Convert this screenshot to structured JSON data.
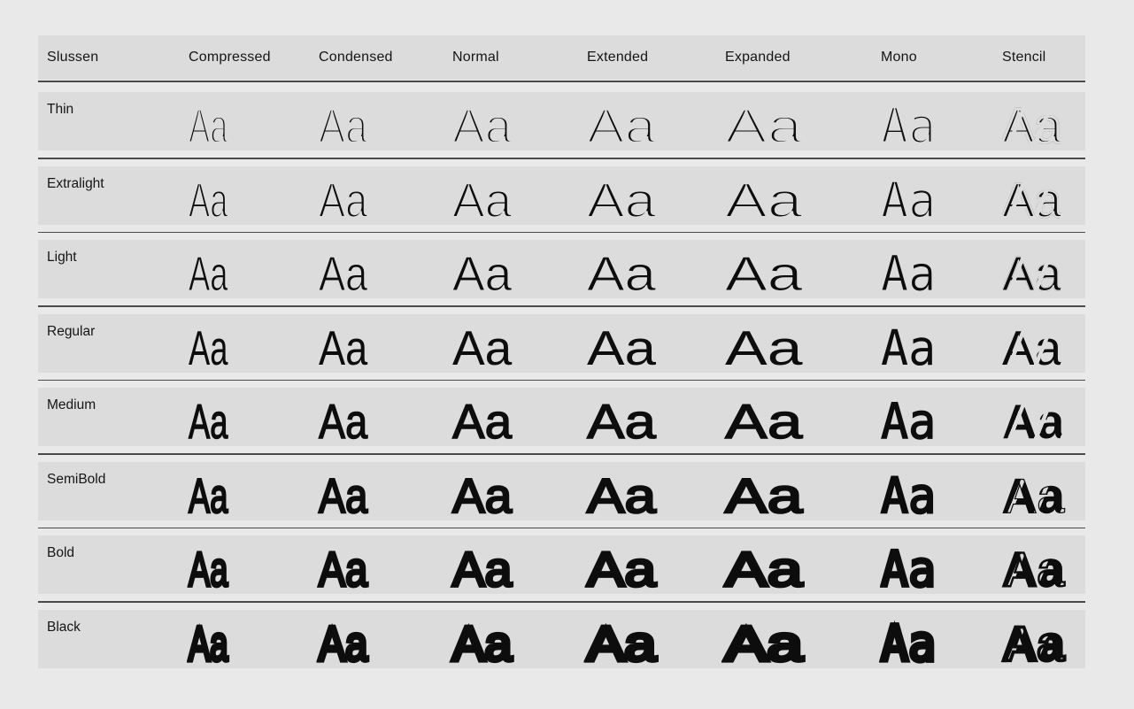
{
  "colors": {
    "page_background": "#e9e9e9",
    "row_band": "#dcdcdc",
    "separator": "#4a4a4a",
    "ink": "#0d0d0d"
  },
  "specimen": {
    "family_name": "Slussen",
    "sample_text": "Aa",
    "columns": [
      {
        "label": "Compressed",
        "style": "compressed"
      },
      {
        "label": "Condensed",
        "style": "condensed"
      },
      {
        "label": "Normal",
        "style": "normal"
      },
      {
        "label": "Extended",
        "style": "extended"
      },
      {
        "label": "Expanded",
        "style": "expanded"
      },
      {
        "label": "Mono",
        "style": "mono"
      },
      {
        "label": "Stencil",
        "style": "stencil"
      }
    ],
    "rows": [
      {
        "label": "Thin",
        "weight": "thin"
      },
      {
        "label": "Extralight",
        "weight": "extralight"
      },
      {
        "label": "Light",
        "weight": "light"
      },
      {
        "label": "Regular",
        "weight": "regular"
      },
      {
        "label": "Medium",
        "weight": "medium"
      },
      {
        "label": "SemiBold",
        "weight": "semibold"
      },
      {
        "label": "Bold",
        "weight": "bold"
      },
      {
        "label": "Black",
        "weight": "black"
      }
    ]
  }
}
